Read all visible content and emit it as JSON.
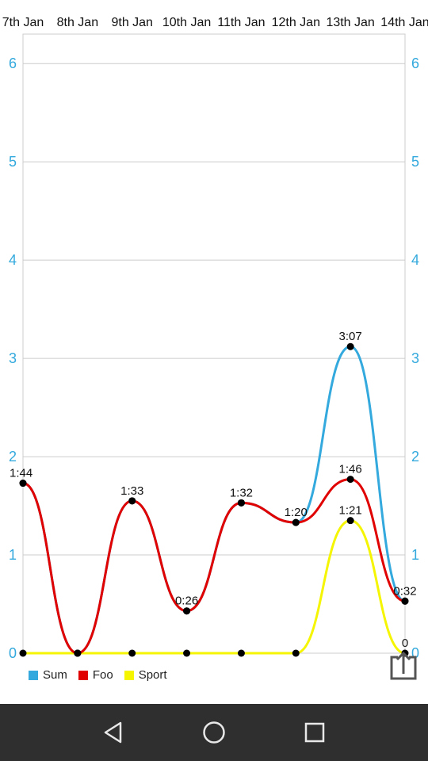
{
  "chart_data": {
    "type": "line",
    "categories": [
      "7th Jan",
      "8th Jan",
      "9th Jan",
      "10th Jan",
      "11th Jan",
      "12th Jan",
      "13th Jan",
      "14th Jan"
    ],
    "ylim": [
      0,
      6.3
    ],
    "yticks": [
      0,
      1,
      2,
      3,
      4,
      5,
      6
    ],
    "grid": true,
    "legend_position": "bottom-left",
    "series": [
      {
        "name": "Sum",
        "color": "#33a9dd",
        "values": [
          1.73,
          0,
          1.55,
          0.43,
          1.53,
          1.33,
          3.12,
          0.53
        ],
        "labels": [
          "",
          "",
          "",
          "",
          "",
          "",
          "3:07",
          "0:32"
        ]
      },
      {
        "name": "Foo",
        "color": "#e00000",
        "values": [
          1.73,
          0,
          1.55,
          0.43,
          1.53,
          1.33,
          1.77,
          0.53
        ],
        "labels": [
          "1:44",
          "",
          "1:33",
          "0:26",
          "1:32",
          "1:20",
          "1:46",
          ""
        ]
      },
      {
        "name": "Sport",
        "color": "#f5f500",
        "values": [
          0,
          0,
          0,
          0,
          0,
          0,
          1.35,
          0
        ],
        "labels": [
          "",
          "",
          "",
          "",
          "",
          "",
          "1:21",
          "0"
        ]
      }
    ]
  },
  "icons": {
    "share": "share-up-arrow-icon",
    "back": "back-triangle-icon",
    "home": "home-circle-icon",
    "recents": "recents-square-icon"
  },
  "colors": {
    "axis_label": "#33a9dd",
    "grid": "#cccccc",
    "navbar": "#2f2f2f"
  }
}
